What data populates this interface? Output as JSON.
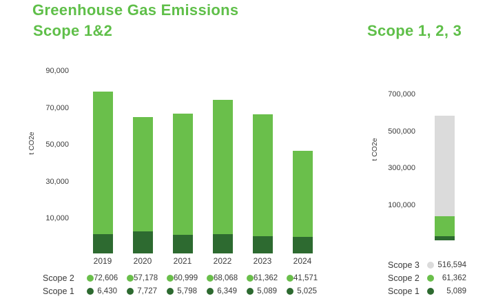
{
  "title": "Greenhouse Gas Emissions",
  "colors": {
    "accent_green": "#5fbf49",
    "scope1_dark_green": "#2d6a30",
    "scope2_light_green": "#6abf4b",
    "scope3_gray": "#dbdbdb",
    "text_dark": "#3a3a3a"
  },
  "left_chart": {
    "subtitle": "Scope 1&2",
    "y_axis_label": "t CO2e",
    "y_ticks": [
      "90,000",
      "70,000",
      "50,000",
      "30,000",
      "10,000"
    ],
    "years": [
      "2019",
      "2020",
      "2021",
      "2022",
      "2023",
      "2024"
    ],
    "legend_rows": [
      {
        "label": "Scope 2",
        "color": "#6abf4b",
        "values": [
          "72,606",
          "57,178",
          "60,999",
          "68,068",
          "61,362",
          "41,571"
        ]
      },
      {
        "label": "Scope 1",
        "color": "#2d6a30",
        "values": [
          "6,430",
          "7,727",
          "5,798",
          "6,349",
          "5,089",
          "5,025"
        ]
      }
    ]
  },
  "right_chart": {
    "subtitle": "Scope 1, 2, 3",
    "y_axis_label": "t CO2e",
    "y_ticks": [
      "700,000",
      "500,000",
      "300,000",
      "100,000"
    ],
    "legend_rows": [
      {
        "label": "Scope 3",
        "color": "#dbdbdb",
        "value": "516,594"
      },
      {
        "label": "Scope 2",
        "color": "#6abf4b",
        "value": "61,362"
      },
      {
        "label": "Scope 1",
        "color": "#2d6a30",
        "value": "5,089"
      }
    ]
  },
  "chart_data": [
    {
      "type": "bar",
      "stacked": true,
      "title": "Greenhouse Gas Emissions — Scope 1&2",
      "categories": [
        "2019",
        "2020",
        "2021",
        "2022",
        "2023",
        "2024"
      ],
      "series": [
        {
          "name": "Scope 1",
          "color": "#2d6a30",
          "values": [
            6430,
            7727,
            5798,
            6349,
            5089,
            5025
          ]
        },
        {
          "name": "Scope 2",
          "color": "#6abf4b",
          "values": [
            72606,
            57178,
            60999,
            68068,
            61362,
            41571
          ]
        }
      ],
      "xlabel": "",
      "ylabel": "t CO2e",
      "ylim": [
        0,
        90000
      ],
      "yticks": [
        10000,
        30000,
        50000,
        70000,
        90000
      ],
      "grid": false,
      "legend_position": "bottom"
    },
    {
      "type": "bar",
      "stacked": true,
      "title": "Greenhouse Gas Emissions — Scope 1, 2, 3",
      "categories": [
        ""
      ],
      "series": [
        {
          "name": "Scope 1",
          "color": "#2d6a30",
          "values": [
            5089
          ]
        },
        {
          "name": "Scope 2",
          "color": "#6abf4b",
          "values": [
            61362
          ]
        },
        {
          "name": "Scope 3",
          "color": "#dbdbdb",
          "values": [
            516594
          ]
        }
      ],
      "xlabel": "",
      "ylabel": "t CO2e",
      "ylim": [
        0,
        700000
      ],
      "yticks": [
        100000,
        300000,
        500000,
        700000
      ],
      "grid": false,
      "legend_position": "bottom"
    }
  ]
}
